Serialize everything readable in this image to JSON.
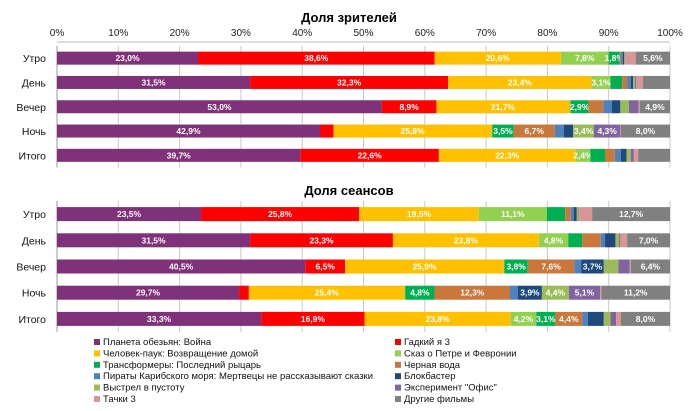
{
  "chart_data": [
    {
      "type": "bar",
      "orientation": "horizontal",
      "stacked": "percent",
      "title": "Доля зрителей",
      "categories": [
        "Утро",
        "День",
        "Вечер",
        "Ночь",
        "Итого"
      ],
      "xlim": [
        0,
        100
      ],
      "x_ticks": [
        "0%",
        "10%",
        "20%",
        "30%",
        "40%",
        "50%",
        "60%",
        "70%",
        "80%",
        "90%",
        "100%"
      ],
      "grid": true,
      "series": [
        {
          "name": "Планета обезьян: Война",
          "color": "#7F3179",
          "values": [
            23.0,
            31.5,
            53.0,
            42.9,
            39.7
          ],
          "labels": [
            "23,0%",
            "31,5%",
            "53,0%",
            "42,9%",
            "39,7%"
          ]
        },
        {
          "name": "Гадкий я 3",
          "color": "#FF0000",
          "values": [
            38.6,
            32.3,
            8.9,
            2.2,
            22.6
          ],
          "labels": [
            "38,6%",
            "32,3%",
            "8,9%",
            "",
            "22,6%"
          ]
        },
        {
          "name": "Человек-паук: Возвращение домой",
          "color": "#FFC000",
          "values": [
            20.6,
            23.4,
            21.7,
            25.8,
            22.3
          ],
          "labels": [
            "20,6%",
            "23,4%",
            "21,7%",
            "25,8%",
            "22,3%"
          ]
        },
        {
          "name": "Сказ о Петре и Февронии",
          "color": "#92D050",
          "values": [
            7.8,
            3.1,
            0.2,
            0.1,
            2.4
          ],
          "labels": [
            "7,8%",
            "3,1%",
            "",
            "",
            "2,4%"
          ]
        },
        {
          "name": "Трансформеры: Последний рыцарь",
          "color": "#00B050",
          "values": [
            1.8,
            1.9,
            2.9,
            3.5,
            2.4
          ],
          "labels": [
            "1,8%",
            "",
            "2,9%",
            "3,5%",
            ""
          ]
        },
        {
          "name": "Черная вода",
          "color": "#C9773A",
          "values": [
            0.2,
            0.8,
            2.4,
            6.7,
            1.6
          ],
          "labels": [
            "",
            "",
            "",
            "6,7%",
            ""
          ]
        },
        {
          "name": "Пираты Карибского моря: Мертвецы не рассказывают сказки",
          "color": "#4F81BD",
          "values": [
            0.3,
            0.6,
            1.4,
            1.5,
            1.0
          ],
          "labels": [
            "",
            "",
            "",
            "",
            ""
          ]
        },
        {
          "name": "Блокбастер",
          "color": "#1F497D",
          "values": [
            0.2,
            0.4,
            1.4,
            1.5,
            0.9
          ],
          "labels": [
            "",
            "",
            "",
            "",
            ""
          ]
        },
        {
          "name": "Выстрел в пустоту",
          "color": "#9BBB59",
          "values": [
            0.1,
            0.3,
            1.4,
            3.4,
            0.7
          ],
          "labels": [
            "",
            "",
            "",
            "3,4%",
            ""
          ]
        },
        {
          "name": "Эксперимент \"Офис\"",
          "color": "#8064A2",
          "values": [
            0.1,
            0.2,
            1.6,
            4.3,
            0.5
          ],
          "labels": [
            "",
            "",
            "",
            "4,3%",
            ""
          ]
        },
        {
          "name": "Тачки 3",
          "color": "#D99694",
          "values": [
            1.7,
            1.1,
            0.2,
            0.1,
            0.7
          ],
          "labels": [
            "",
            "",
            "",
            "",
            ""
          ]
        },
        {
          "name": "Другие фильмы",
          "color": "#808080",
          "values": [
            5.6,
            4.4,
            4.9,
            8.0,
            5.2
          ],
          "labels": [
            "5,6%",
            "",
            "4,9%",
            "8,0%",
            ""
          ]
        }
      ]
    },
    {
      "type": "bar",
      "orientation": "horizontal",
      "stacked": "percent",
      "title": "Доля сеансов",
      "categories": [
        "Утро",
        "День",
        "Вечер",
        "Ночь",
        "Итого"
      ],
      "xlim": [
        0,
        100
      ],
      "grid": true,
      "legend": "bottom",
      "series": [
        {
          "name": "Планета обезьян: Война",
          "color": "#7F3179",
          "values": [
            23.5,
            31.5,
            40.5,
            29.7,
            33.3
          ],
          "labels": [
            "23,5%",
            "31,5%",
            "40,5%",
            "29,7%",
            "33,3%"
          ]
        },
        {
          "name": "Гадкий я 3",
          "color": "#FF0000",
          "values": [
            25.8,
            23.3,
            6.5,
            1.6,
            16.9
          ],
          "labels": [
            "25,8%",
            "23,3%",
            "6,5%",
            "",
            "16,9%"
          ]
        },
        {
          "name": "Человек-паук: Возвращение домой",
          "color": "#FFC000",
          "values": [
            19.5,
            23.8,
            25.9,
            25.4,
            23.8
          ],
          "labels": [
            "19,5%",
            "23,8%",
            "25,9%",
            "25,4%",
            "23,8%"
          ]
        },
        {
          "name": "Сказ о Петре и Февронии",
          "color": "#92D050",
          "values": [
            11.1,
            4.8,
            0.1,
            0.1,
            4.2
          ],
          "labels": [
            "11,1%",
            "4,8%",
            "",
            "",
            "4,2%"
          ]
        },
        {
          "name": "Трансформеры: Последний рыцарь",
          "color": "#00B050",
          "values": [
            3.0,
            2.3,
            3.8,
            4.8,
            3.1
          ],
          "labels": [
            "",
            "",
            "3,8%",
            "4,8%",
            "3,1%"
          ]
        },
        {
          "name": "Черная вода",
          "color": "#C9773A",
          "values": [
            0.9,
            3.0,
            7.6,
            12.3,
            4.4
          ],
          "labels": [
            "",
            "",
            "7,6%",
            "12,3%",
            "4,4%"
          ]
        },
        {
          "name": "Пираты Карибского моря: Мертвецы не рассказывают сказки",
          "color": "#4F81BD",
          "values": [
            0.5,
            0.7,
            1.1,
            1.3,
            0.9
          ],
          "labels": [
            "",
            "",
            "",
            "",
            ""
          ]
        },
        {
          "name": "Блокбастер",
          "color": "#1F497D",
          "values": [
            0.5,
            1.7,
            3.7,
            3.9,
            2.6
          ],
          "labels": [
            "",
            "",
            "3,7%",
            "3,9%",
            ""
          ]
        },
        {
          "name": "Выстрел в пустоту",
          "color": "#9BBB59",
          "values": [
            0.3,
            0.6,
            2.4,
            4.4,
            1.1
          ],
          "labels": [
            "",
            "",
            "",
            "4,4%",
            ""
          ]
        },
        {
          "name": "Эксперимент \"Офис\"",
          "color": "#8064A2",
          "values": [
            0.1,
            0.2,
            1.8,
            5.1,
            0.9
          ],
          "labels": [
            "",
            "",
            "",
            "5,1%",
            ""
          ]
        },
        {
          "name": "Тачки 3",
          "color": "#D99694",
          "values": [
            2.1,
            1.1,
            0.2,
            0.2,
            0.8
          ],
          "labels": [
            "",
            "",
            "",
            "",
            ""
          ]
        },
        {
          "name": "Другие фильмы",
          "color": "#808080",
          "values": [
            12.7,
            7.0,
            6.4,
            11.2,
            8.0
          ],
          "labels": [
            "12,7%",
            "7,0%",
            "6,4%",
            "11,2%",
            "8,0%"
          ]
        }
      ]
    }
  ]
}
